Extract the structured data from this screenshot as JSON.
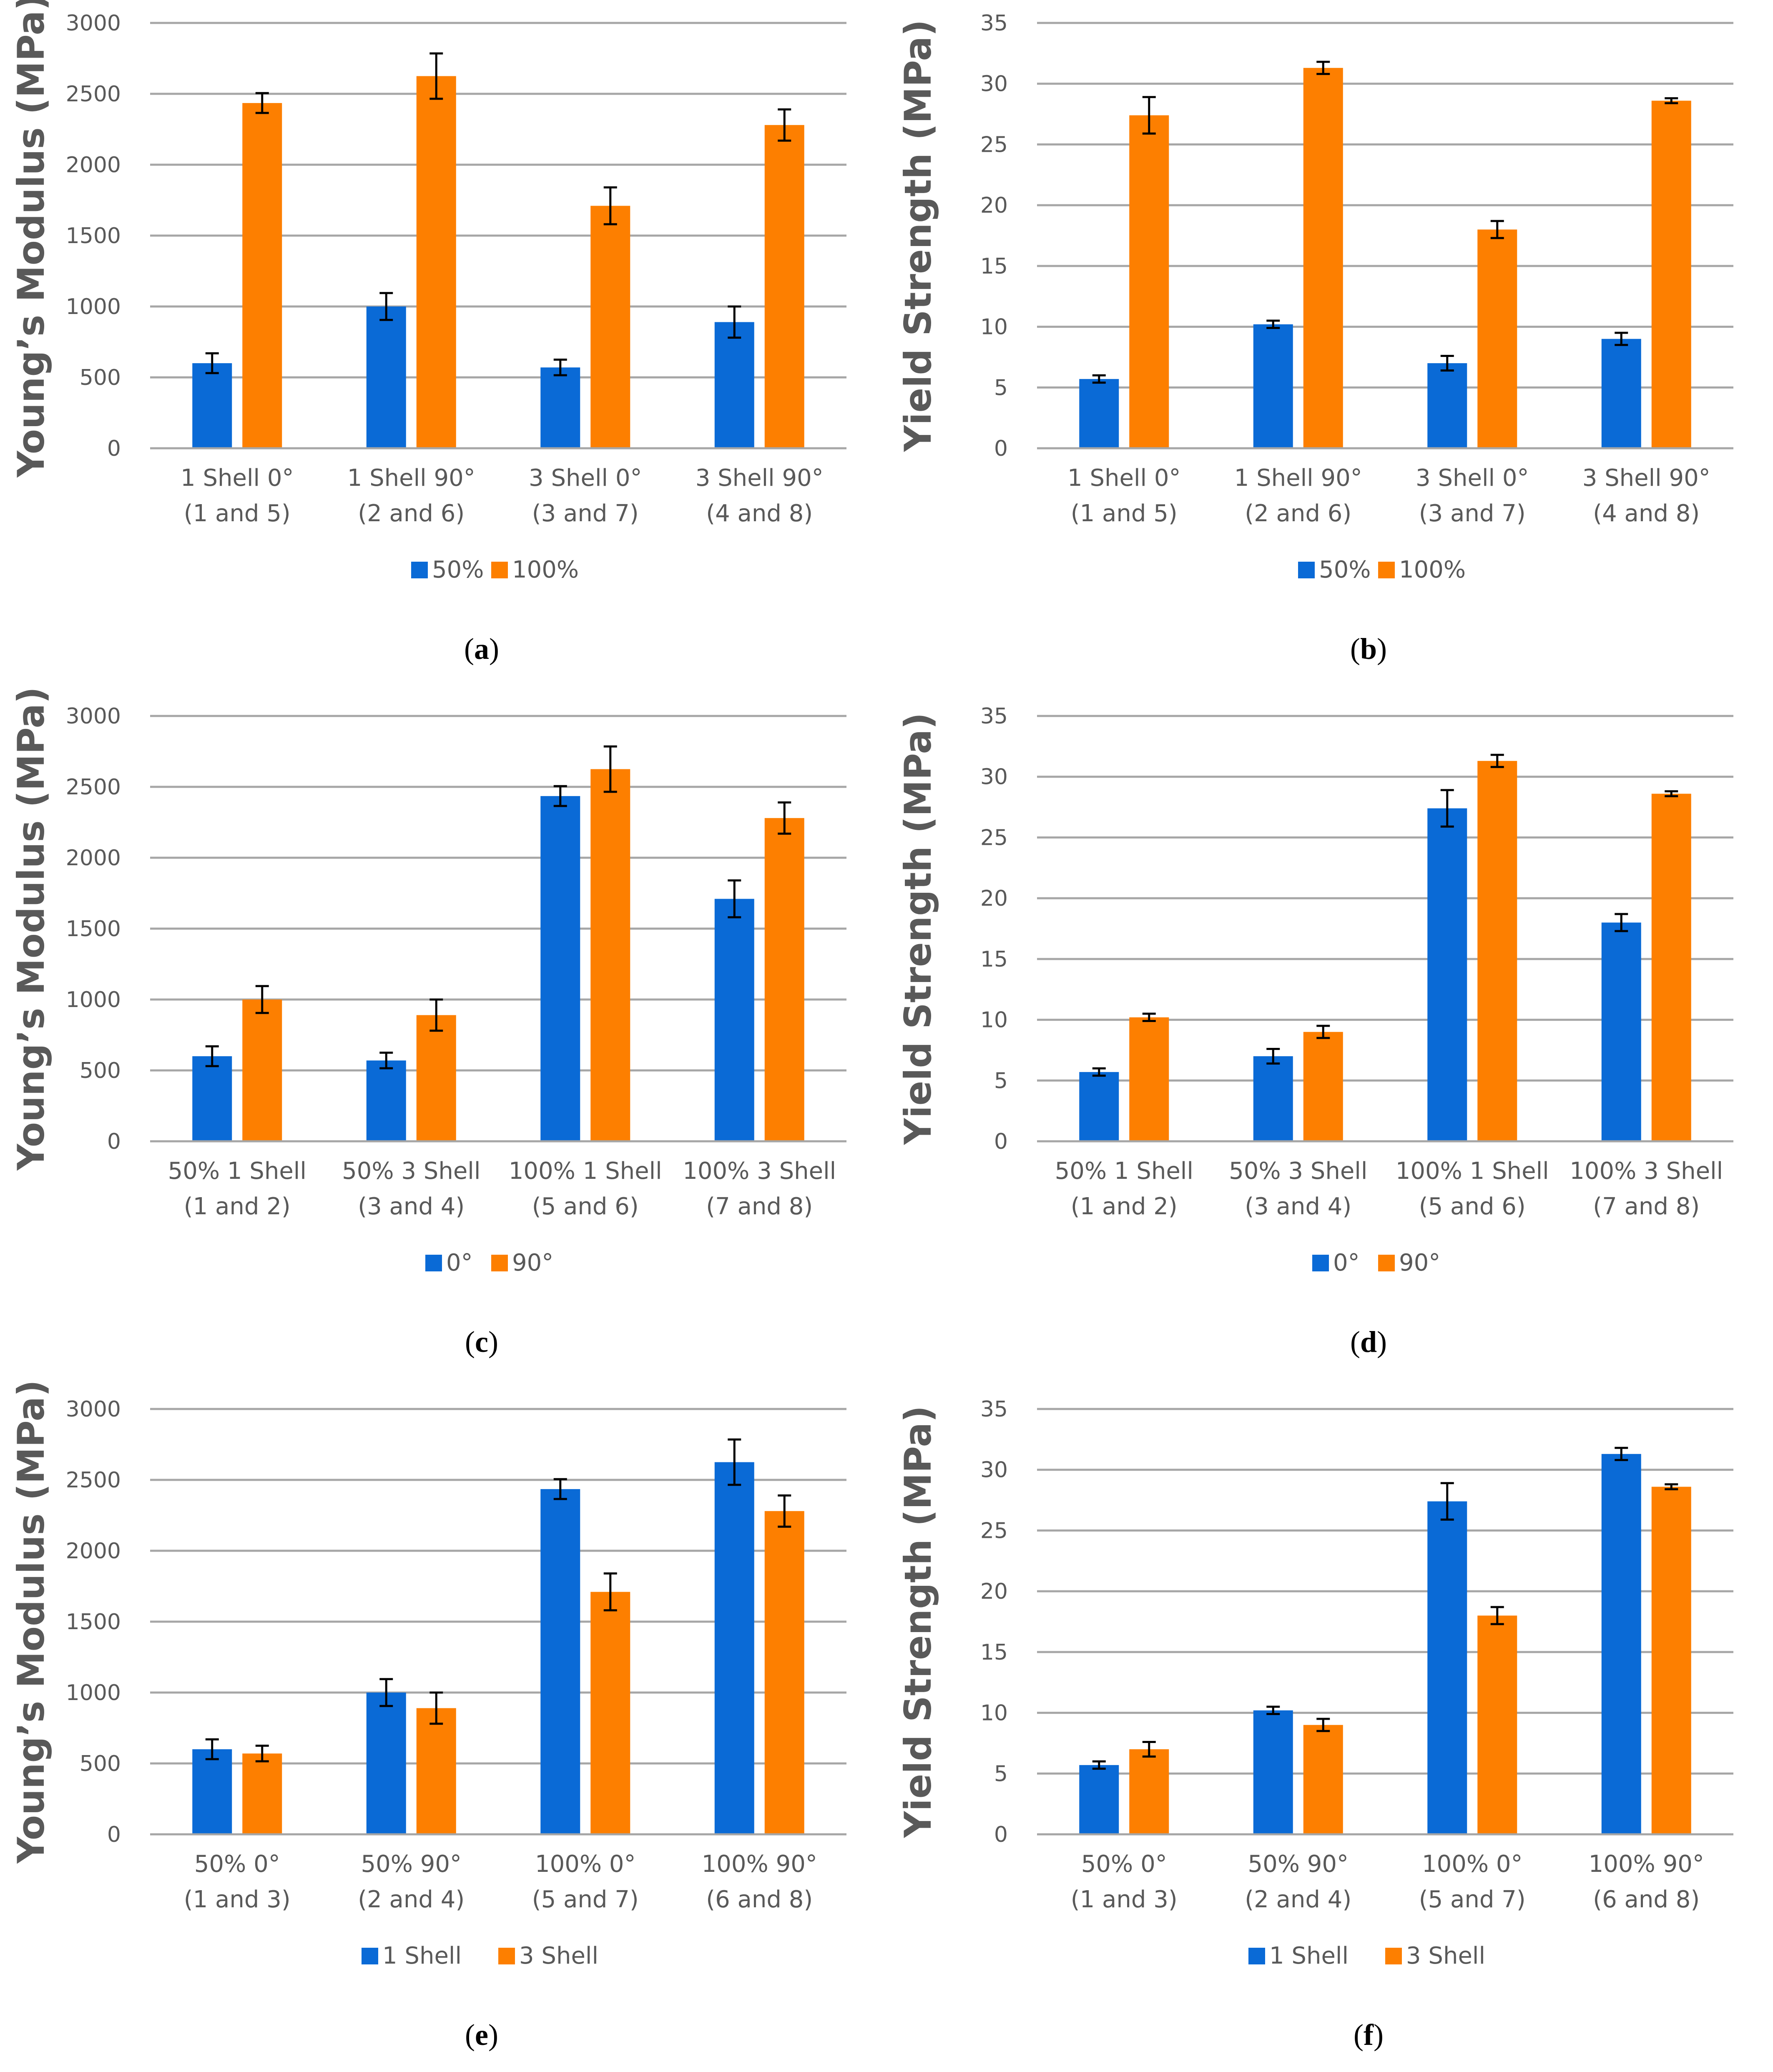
{
  "chart_data": [
    {
      "type": "bar",
      "panel": "a",
      "ylabel": "Young’s Modulus (MPa)",
      "ylim": [
        0,
        3000
      ],
      "yticks": [
        0,
        500,
        1000,
        1500,
        2000,
        2500,
        3000
      ],
      "categories": [
        [
          "1 Shell 0°",
          "(1 and 5)"
        ],
        [
          "1 Shell 90°",
          "(2 and 6)"
        ],
        [
          "3 Shell 0°",
          "(3 and 7)"
        ],
        [
          "3 Shell 90°",
          "(4 and 8)"
        ]
      ],
      "series": [
        {
          "name": "50%",
          "color": "#0a6ad6",
          "values": [
            600,
            1000,
            570,
            890
          ],
          "errors": [
            70,
            95,
            55,
            110
          ]
        },
        {
          "name": "100%",
          "color": "#fd7f00",
          "values": [
            2435,
            2625,
            1710,
            2280
          ],
          "errors": [
            70,
            160,
            130,
            110
          ]
        }
      ]
    },
    {
      "type": "bar",
      "panel": "b",
      "ylabel": "Yield Strength (MPa)",
      "ylim": [
        0,
        35
      ],
      "yticks": [
        0,
        5,
        10,
        15,
        20,
        25,
        30,
        35
      ],
      "categories": [
        [
          "1 Shell 0°",
          "(1 and 5)"
        ],
        [
          "1 Shell 90°",
          "(2 and 6)"
        ],
        [
          "3 Shell 0°",
          "(3 and 7)"
        ],
        [
          "3 Shell 90°",
          "(4 and 8)"
        ]
      ],
      "series": [
        {
          "name": "50%",
          "color": "#0a6ad6",
          "values": [
            5.7,
            10.2,
            7.0,
            9.0
          ],
          "errors": [
            0.3,
            0.3,
            0.6,
            0.5
          ]
        },
        {
          "name": "100%",
          "color": "#fd7f00",
          "values": [
            27.4,
            31.3,
            18.0,
            28.6
          ],
          "errors": [
            1.5,
            0.5,
            0.7,
            0.2
          ]
        }
      ]
    },
    {
      "type": "bar",
      "panel": "c",
      "ylabel": "Young’s Modulus (MPa)",
      "ylim": [
        0,
        3000
      ],
      "yticks": [
        0,
        500,
        1000,
        1500,
        2000,
        2500,
        3000
      ],
      "categories": [
        [
          "50% 1 Shell",
          "(1 and 2)"
        ],
        [
          "50% 3 Shell",
          "(3 and 4)"
        ],
        [
          "100% 1 Shell",
          "(5 and 6)"
        ],
        [
          "100% 3 Shell",
          "(7 and 8)"
        ]
      ],
      "series": [
        {
          "name": "0°",
          "color": "#0a6ad6",
          "values": [
            600,
            570,
            2435,
            1710
          ],
          "errors": [
            70,
            55,
            70,
            130
          ]
        },
        {
          "name": "90°",
          "color": "#fd7f00",
          "values": [
            1000,
            890,
            2625,
            2280
          ],
          "errors": [
            95,
            110,
            160,
            110
          ]
        }
      ]
    },
    {
      "type": "bar",
      "panel": "d",
      "ylabel": "Yield Strength (MPa)",
      "ylim": [
        0,
        35
      ],
      "yticks": [
        0,
        5,
        10,
        15,
        20,
        25,
        30,
        35
      ],
      "categories": [
        [
          "50% 1 Shell",
          "(1 and 2)"
        ],
        [
          "50% 3 Shell",
          "(3 and 4)"
        ],
        [
          "100% 1 Shell",
          "(5 and 6)"
        ],
        [
          "100% 3 Shell",
          "(7 and 8)"
        ]
      ],
      "series": [
        {
          "name": "0°",
          "color": "#0a6ad6",
          "values": [
            5.7,
            7.0,
            27.4,
            18.0
          ],
          "errors": [
            0.3,
            0.6,
            1.5,
            0.7
          ]
        },
        {
          "name": "90°",
          "color": "#fd7f00",
          "values": [
            10.2,
            9.0,
            31.3,
            28.6
          ],
          "errors": [
            0.3,
            0.5,
            0.5,
            0.2
          ]
        }
      ]
    },
    {
      "type": "bar",
      "panel": "e",
      "ylabel": "Young’s Modulus (MPa)",
      "ylim": [
        0,
        3000
      ],
      "yticks": [
        0,
        500,
        1000,
        1500,
        2000,
        2500,
        3000
      ],
      "categories": [
        [
          "50% 0°",
          "(1 and 3)"
        ],
        [
          "50% 90°",
          "(2 and 4)"
        ],
        [
          "100% 0°",
          "(5 and 7)"
        ],
        [
          "100% 90°",
          "(6 and 8)"
        ]
      ],
      "series": [
        {
          "name": "1 Shell",
          "color": "#0a6ad6",
          "values": [
            600,
            1000,
            2435,
            2625
          ],
          "errors": [
            70,
            95,
            70,
            160
          ]
        },
        {
          "name": "3 Shell",
          "color": "#fd7f00",
          "values": [
            570,
            890,
            1710,
            2280
          ],
          "errors": [
            55,
            110,
            130,
            110
          ]
        }
      ]
    },
    {
      "type": "bar",
      "panel": "f",
      "ylabel": "Yield Strength (MPa)",
      "ylim": [
        0,
        35
      ],
      "yticks": [
        0,
        5,
        10,
        15,
        20,
        25,
        30,
        35
      ],
      "categories": [
        [
          "50% 0°",
          "(1 and 3)"
        ],
        [
          "50% 90°",
          "(2 and 4)"
        ],
        [
          "100% 0°",
          "(5 and 7)"
        ],
        [
          "100% 90°",
          "(6 and 8)"
        ]
      ],
      "series": [
        {
          "name": "1 Shell",
          "color": "#0a6ad6",
          "values": [
            5.7,
            10.2,
            27.4,
            31.3
          ],
          "errors": [
            0.3,
            0.3,
            1.5,
            0.5
          ]
        },
        {
          "name": "3 Shell",
          "color": "#fd7f00",
          "values": [
            7.0,
            9.0,
            18.0,
            28.6
          ],
          "errors": [
            0.6,
            0.5,
            0.7,
            0.2
          ]
        }
      ]
    }
  ],
  "styles": {
    "grid_color": "#a6a6a6",
    "text_color": "#595959",
    "error_color": "#000000"
  }
}
